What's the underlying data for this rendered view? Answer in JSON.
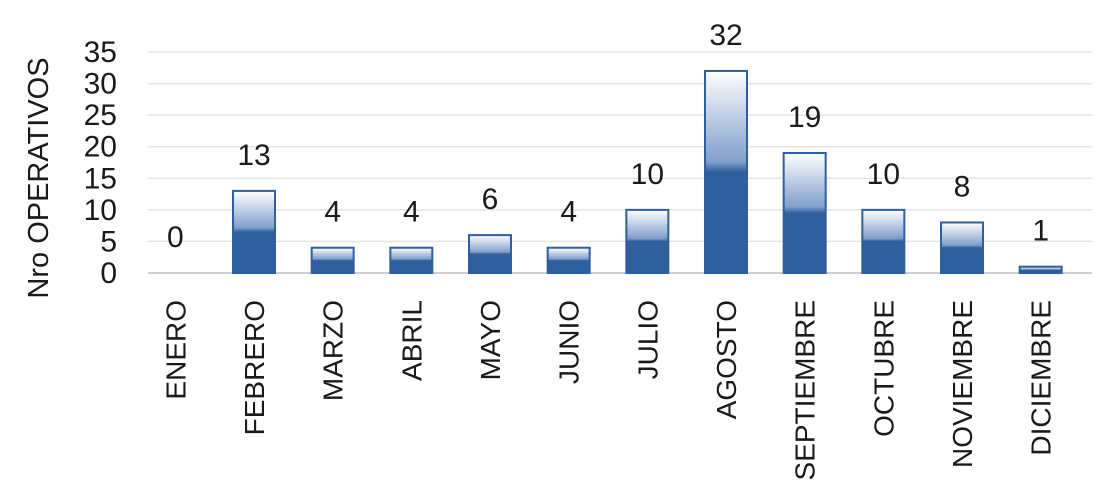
{
  "chart_data": {
    "type": "bar",
    "ylabel": "Nro OPERATIVOS",
    "xlabel": "",
    "title": "",
    "categories": [
      "ENERO",
      "FEBRERO",
      "MARZO",
      "ABRIL",
      "MAYO",
      "JUNIO",
      "JULIO",
      "AGOSTO",
      "SEPTIEMBRE",
      "OCTUBRE",
      "NOVIEMBRE",
      "DICIEMBRE"
    ],
    "values": [
      0,
      13,
      4,
      4,
      6,
      4,
      10,
      32,
      19,
      10,
      8,
      1
    ],
    "ylim": [
      0,
      35
    ],
    "yticks": [
      0,
      5,
      10,
      15,
      20,
      25,
      30,
      35
    ],
    "grid": true,
    "data_labels": true,
    "bar_color": "#2f5f9f",
    "bar_highlight": "#ffffff"
  }
}
